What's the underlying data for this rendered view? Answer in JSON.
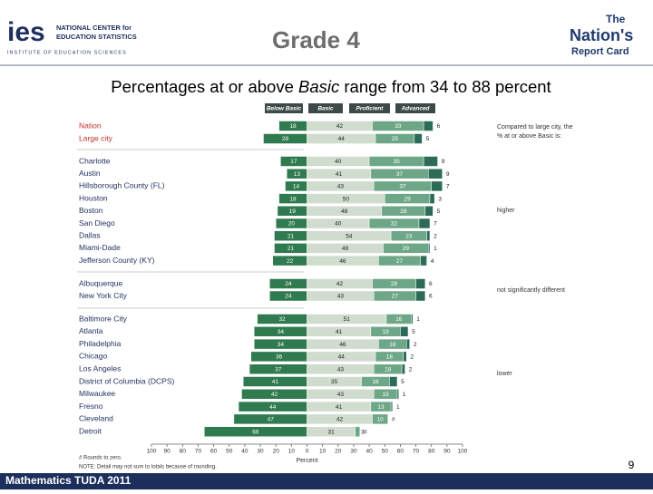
{
  "header": {
    "ies": "ies",
    "nces_line1": "NATIONAL CENTER for",
    "nces_line2": "EDUCATION STATISTICS",
    "ies_full": "INSTITUTE OF EDUCATION SCIENCES",
    "slide_title": "Grade 4",
    "nrc_the": "The",
    "nrc_nations": "Nation's",
    "nrc_report_card": "Report Card"
  },
  "chart_data": {
    "type": "diverging_stacked_bar",
    "title_parts": [
      "Percentages at or above ",
      "Basic",
      " range from 34 to 88 percent"
    ],
    "categories": [
      "Nation",
      "Large city",
      "Charlotte",
      "Austin",
      "Hillsborough County (FL)",
      "Houston",
      "Boston",
      "San Diego",
      "Dallas",
      "Miami-Dade",
      "Jefferson County (KY)",
      "Albuquerque",
      "New York City",
      "Baltimore City",
      "Atlanta",
      "Philadelphia",
      "Chicago",
      "Los Angeles",
      "District of Columbia (DCPS)",
      "Milwaukee",
      "Fresno",
      "Cleveland",
      "Detroit"
    ],
    "series": [
      {
        "name": "Below Basic",
        "color": "#2f7a4f",
        "direction": "left",
        "values": [
          18,
          28,
          17,
          13,
          14,
          18,
          19,
          20,
          21,
          21,
          22,
          24,
          24,
          32,
          34,
          34,
          36,
          37,
          41,
          42,
          44,
          47,
          66
        ]
      },
      {
        "name": "Basic",
        "color": "#cfdcce",
        "values": [
          42,
          44,
          40,
          41,
          43,
          50,
          48,
          40,
          54,
          49,
          46,
          42,
          43,
          51,
          41,
          46,
          44,
          43,
          35,
          43,
          41,
          42,
          31
        ]
      },
      {
        "name": "Proficient",
        "color": "#6ea788",
        "values": [
          33,
          25,
          35,
          37,
          37,
          29,
          28,
          32,
          23,
          29,
          27,
          28,
          27,
          16,
          19,
          18,
          18,
          18,
          18,
          15,
          13,
          10,
          3
        ]
      },
      {
        "name": "Advanced",
        "color": "#2c6b57",
        "values": [
          6,
          5,
          9,
          9,
          7,
          3,
          5,
          7,
          2,
          1,
          4,
          6,
          6,
          1,
          5,
          2,
          2,
          2,
          5,
          1,
          1,
          0,
          0
        ],
        "value_labels": [
          "6",
          "5",
          "9",
          "9",
          "7",
          "3",
          "5",
          "7",
          "2",
          "1",
          "4",
          "6",
          "6",
          "1",
          "5",
          "2",
          "2",
          "2",
          "5",
          "1",
          "1",
          "#",
          "#"
        ]
      }
    ],
    "xlim": [
      -100,
      100
    ],
    "xticks": [
      {
        "value": -100,
        "label": "100"
      },
      {
        "value": -90,
        "label": "90"
      },
      {
        "value": -80,
        "label": "80"
      },
      {
        "value": -70,
        "label": "70"
      },
      {
        "value": -60,
        "label": "60"
      },
      {
        "value": -50,
        "label": "50"
      },
      {
        "value": -40,
        "label": "40"
      },
      {
        "value": -30,
        "label": "30"
      },
      {
        "value": -20,
        "label": "20"
      },
      {
        "value": -10,
        "label": "10"
      },
      0,
      10,
      20,
      30,
      40,
      50,
      60,
      70,
      80,
      90,
      100
    ],
    "xlabel": "Percent",
    "comparison_note": [
      "Compared to large city, the",
      "% at or above Basic is:"
    ],
    "group_labels": [
      "higher",
      "not significantly different",
      "lower"
    ],
    "footnotes": [
      "# Rounds to zero.",
      "NOTE: Detail may not sum to totals because of rounding."
    ]
  },
  "footer": {
    "left": "Mathematics TUDA 2011",
    "page": "9"
  }
}
